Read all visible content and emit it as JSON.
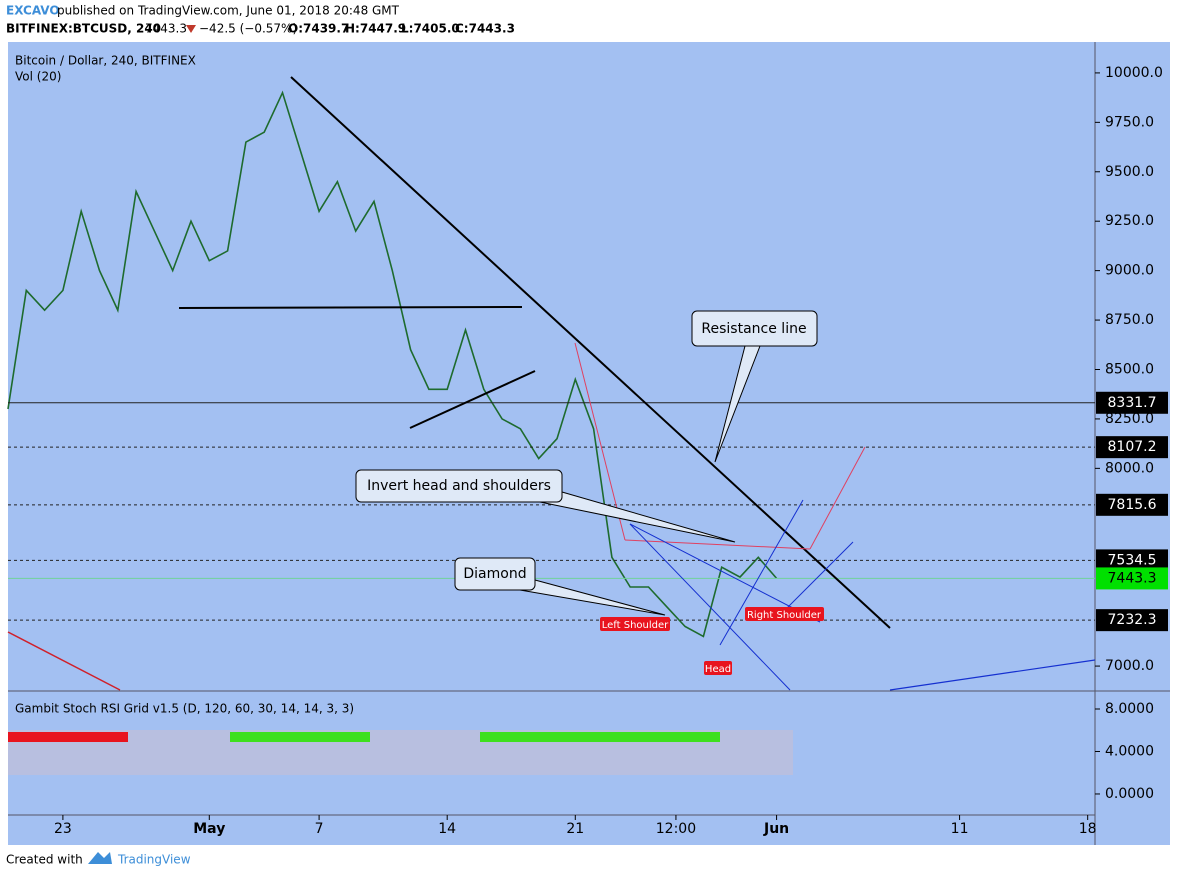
{
  "header": {
    "author": "EXCAVO",
    "published": "published on TradingView.com, June 01, 2018 20:48 GMT",
    "symbol": "BITFINEX:BTCUSD, 240",
    "last": "7443.3",
    "change": "−42.5 (−0.57%)",
    "open": "O:7439.7",
    "high": "H:7447.9",
    "low": "L:7405.0",
    "close": "C:7443.3"
  },
  "chart_data": [
    {
      "type": "line",
      "title": "Bitcoin / Dollar, 240, BITFINEX",
      "subtitle": "Vol (20)",
      "color": "#1e6b2e",
      "x": [
        -3,
        -2,
        -1,
        0,
        1,
        2,
        3,
        4,
        5,
        6,
        7,
        8,
        9,
        10,
        11,
        12,
        13,
        14,
        15,
        16,
        17,
        18,
        19,
        20,
        21,
        22,
        23,
        24,
        25,
        26,
        27,
        28,
        29,
        30,
        31,
        32,
        33,
        34,
        35,
        36,
        37,
        38,
        39
      ],
      "values": [
        8300,
        8900,
        8800,
        8900,
        9300,
        9000,
        8800,
        9400,
        9200,
        9000,
        9250,
        9050,
        9100,
        9650,
        9700,
        9900,
        9600,
        9300,
        9450,
        9200,
        9350,
        9000,
        8600,
        8400,
        8400,
        8700,
        8400,
        8250,
        8200,
        8050,
        8150,
        8450,
        8200,
        7550,
        7400,
        7400,
        7300,
        7200,
        7150,
        7500,
        7450,
        7550,
        7443.3
      ],
      "xlim": [
        -3,
        56.4
      ],
      "xticks": [
        {
          "value": 0,
          "label": "23"
        },
        {
          "value": 8,
          "label": "May"
        },
        {
          "value": 14,
          "label": "7"
        },
        {
          "value": 21,
          "label": "14"
        },
        {
          "value": 28,
          "label": "21"
        },
        {
          "value": 33.5,
          "label": "12:00"
        },
        {
          "value": 39,
          "label": "Jun"
        },
        {
          "value": 49,
          "label": "11"
        },
        {
          "value": 56,
          "label": "18"
        }
      ],
      "ylim": [
        6879,
        10126
      ],
      "yticks": [
        {
          "value": 7000,
          "label": "7000.0"
        },
        {
          "value": 8000,
          "label": "8000.0"
        },
        {
          "value": 8250,
          "label": "8250.0"
        },
        {
          "value": 8500,
          "label": "8500.0"
        },
        {
          "value": 8750,
          "label": "8750.0"
        },
        {
          "value": 9000,
          "label": "9000.0"
        },
        {
          "value": 9250,
          "label": "9250.0"
        },
        {
          "value": 9500,
          "label": "9500.0"
        },
        {
          "value": 9750,
          "label": "9750.0"
        },
        {
          "value": 10000,
          "label": "10000.0"
        }
      ],
      "price_levels": [
        {
          "value": 8331.7,
          "line": "solid",
          "color": "#000000"
        },
        {
          "value": 8107.2,
          "line": "dashed",
          "color": "#000000"
        },
        {
          "value": 7815.6,
          "line": "dashed",
          "color": "#000000"
        },
        {
          "value": 7534.5,
          "line": "dashed",
          "color": "#000000"
        },
        {
          "value": 7443.3,
          "line": "solid",
          "color": "#00e000"
        },
        {
          "value": 7232.3,
          "line": "dashed",
          "color": "#000000"
        }
      ],
      "annotations": {
        "resistance": "Resistance line",
        "ihs": "Invert head and shoulders",
        "diamond": "Diamond",
        "left_shoulder": "Left Shoulder",
        "head": "Head",
        "right_shoulder": "Right Shoulder"
      }
    },
    {
      "type": "indicator",
      "title": "Gambit Stoch RSI Grid v1.5 (D, 120, 60, 30, 14, 14, 3, 3)",
      "ylim": [
        -1.98,
        9.6
      ],
      "yticks": [
        {
          "value": 8,
          "label": "8.0000"
        },
        {
          "value": 4,
          "label": "4.0000"
        },
        {
          "value": 0,
          "label": "0.0000"
        }
      ]
    }
  ],
  "footer": {
    "created": "Created with",
    "brand": "TradingView"
  }
}
